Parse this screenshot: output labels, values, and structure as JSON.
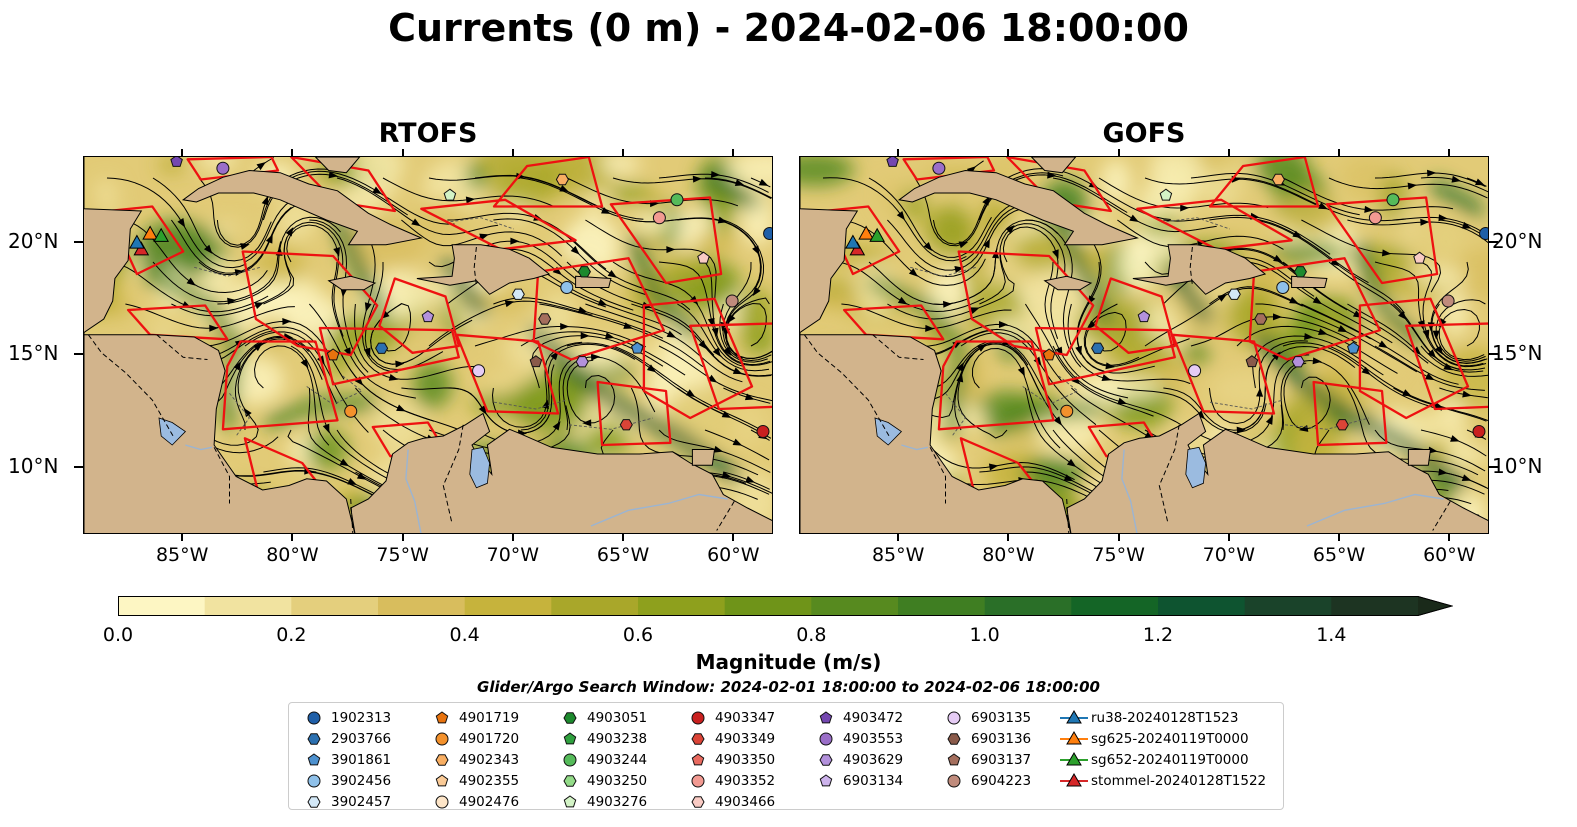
{
  "title": "Currents (0 m) - 2024-02-06 18:00:00",
  "panels": [
    {
      "title": "RTOFS"
    },
    {
      "title": "GOFS"
    }
  ],
  "axes": {
    "lon_ticks": [
      "85°W",
      "80°W",
      "75°W",
      "70°W",
      "65°W",
      "60°W"
    ],
    "lon_values": [
      -85,
      -80,
      -75,
      -70,
      -65,
      -60
    ],
    "lat_ticks": [
      "20°N",
      "15°N",
      "10°N"
    ],
    "lat_values": [
      20,
      15,
      10
    ],
    "lon_range": [
      -89.5,
      -58.2
    ],
    "lat_range": [
      7.0,
      23.8
    ]
  },
  "colorbar": {
    "label": "Magnitude (m/s)",
    "ticks": [
      "0.0",
      "0.2",
      "0.4",
      "0.6",
      "0.8",
      "1.0",
      "1.2",
      "1.4"
    ],
    "tick_values": [
      0.0,
      0.2,
      0.4,
      0.6,
      0.8,
      1.0,
      1.2,
      1.4
    ],
    "min": 0.0,
    "max": 1.5,
    "step": 0.1,
    "extend": "max",
    "colors": [
      "#fdf6c3",
      "#f1e3a0",
      "#e4cf7d",
      "#d8bd5d",
      "#c6b33c",
      "#a9a72a",
      "#8ea01d",
      "#6f9419",
      "#578a1f",
      "#3f7e22",
      "#2a6f28",
      "#146526",
      "#0e5430",
      "#1a432a",
      "#1d3422",
      "#1a2a1a"
    ]
  },
  "legend": {
    "title": "Glider/Argo Search Window: 2024-02-01 18:00:00 to 2024-02-06 18:00:00",
    "columns": [
      [
        {
          "label": "1902313",
          "marker": "circle",
          "color": "#1f5fa8"
        },
        {
          "label": "2903766",
          "marker": "hexagon",
          "color": "#2b70b0"
        },
        {
          "label": "3901861",
          "marker": "pentagon",
          "color": "#4d91cf"
        },
        {
          "label": "3902456",
          "marker": "circle",
          "color": "#8fc1ea"
        },
        {
          "label": "3902457",
          "marker": "hexagon",
          "color": "#d3e8f7"
        }
      ],
      [
        {
          "label": "4901719",
          "marker": "pentagon",
          "color": "#e8730e"
        },
        {
          "label": "4901720",
          "marker": "circle",
          "color": "#f3912c"
        },
        {
          "label": "4902343",
          "marker": "hexagon",
          "color": "#f8ae62"
        },
        {
          "label": "4902355",
          "marker": "pentagon",
          "color": "#fbcb97"
        },
        {
          "label": "4902476",
          "marker": "circle",
          "color": "#fde5c8"
        }
      ],
      [
        {
          "label": "4903051",
          "marker": "hexagon",
          "color": "#1d8a2e"
        },
        {
          "label": "4903238",
          "marker": "pentagon",
          "color": "#2fa03e"
        },
        {
          "label": "4903244",
          "marker": "circle",
          "color": "#55bb5a"
        },
        {
          "label": "4903250",
          "marker": "hexagon",
          "color": "#93db88"
        },
        {
          "label": "4903276",
          "marker": "pentagon",
          "color": "#d3f3c6"
        }
      ],
      [
        {
          "label": "4903347",
          "marker": "circle",
          "color": "#c9201f"
        },
        {
          "label": "4903349",
          "marker": "hexagon",
          "color": "#db4437"
        },
        {
          "label": "4903350",
          "marker": "pentagon",
          "color": "#e96a5f"
        },
        {
          "label": "4903352",
          "marker": "circle",
          "color": "#f29a92"
        },
        {
          "label": "4903466",
          "marker": "hexagon",
          "color": "#f9cbc4"
        }
      ],
      [
        {
          "label": "4903472",
          "marker": "pentagon",
          "color": "#7447b0"
        },
        {
          "label": "4903553",
          "marker": "circle",
          "color": "#9a6ec8"
        },
        {
          "label": "4903629",
          "marker": "hexagon",
          "color": "#b391dc"
        },
        {
          "label": "6903134",
          "marker": "pentagon",
          "color": "#cdb3ec"
        }
      ],
      [
        {
          "label": "6903135",
          "marker": "circle",
          "color": "#e6ccf5"
        },
        {
          "label": "6903136",
          "marker": "hexagon",
          "color": "#8a5a4a"
        },
        {
          "label": "6903137",
          "marker": "pentagon",
          "color": "#a46e5d"
        },
        {
          "label": "6904223",
          "marker": "circle",
          "color": "#c08b7c"
        }
      ],
      [
        {
          "label": "ru38-20240128T1523",
          "marker": "triangle-line",
          "color": "#1f77b4"
        },
        {
          "label": "sg625-20240119T0000",
          "marker": "triangle-line",
          "color": "#ff7f0e"
        },
        {
          "label": "sg652-20240119T0000",
          "marker": "triangle-line",
          "color": "#2ca02c"
        },
        {
          "label": "stommel-20240128T1522",
          "marker": "triangle-line",
          "color": "#d62728"
        }
      ]
    ]
  },
  "floats": [
    {
      "lon": -85.3,
      "lat": 23.6,
      "marker": "pentagon",
      "color": "#7447b0"
    },
    {
      "lon": -83.2,
      "lat": 23.3,
      "marker": "circle",
      "color": "#9a6ec8"
    },
    {
      "lon": -72.9,
      "lat": 22.1,
      "marker": "pentagon",
      "color": "#d3f3c6"
    },
    {
      "lon": -67.8,
      "lat": 22.8,
      "marker": "hexagon",
      "color": "#f8ae62"
    },
    {
      "lon": -62.6,
      "lat": 21.9,
      "marker": "circle",
      "color": "#55bb5a"
    },
    {
      "lon": -63.4,
      "lat": 21.1,
      "marker": "circle",
      "color": "#f29a92"
    },
    {
      "lon": -58.4,
      "lat": 20.4,
      "marker": "circle",
      "color": "#1f5fa8"
    },
    {
      "lon": -61.4,
      "lat": 19.3,
      "marker": "pentagon",
      "color": "#f9cbc4"
    },
    {
      "lon": -66.8,
      "lat": 18.7,
      "marker": "hexagon",
      "color": "#1d8a2e"
    },
    {
      "lon": -67.6,
      "lat": 18.0,
      "marker": "circle",
      "color": "#8fc1ea"
    },
    {
      "lon": -69.8,
      "lat": 17.7,
      "marker": "hexagon",
      "color": "#d3e8f7"
    },
    {
      "lon": -60.1,
      "lat": 17.4,
      "marker": "circle",
      "color": "#c08b7c"
    },
    {
      "lon": -73.9,
      "lat": 16.7,
      "marker": "pentagon",
      "color": "#b391dc"
    },
    {
      "lon": -68.6,
      "lat": 16.6,
      "marker": "hexagon",
      "color": "#a46e5d"
    },
    {
      "lon": -76.0,
      "lat": 15.3,
      "marker": "hexagon",
      "color": "#2b70b0"
    },
    {
      "lon": -78.2,
      "lat": 15.0,
      "marker": "pentagon",
      "color": "#e8730e"
    },
    {
      "lon": -64.4,
      "lat": 15.3,
      "marker": "pentagon",
      "color": "#4d91cf"
    },
    {
      "lon": -66.9,
      "lat": 14.7,
      "marker": "hexagon",
      "color": "#b391dc"
    },
    {
      "lon": -69.0,
      "lat": 14.7,
      "marker": "pentagon",
      "color": "#8a5a4a"
    },
    {
      "lon": -71.6,
      "lat": 14.3,
      "marker": "circle",
      "color": "#e6ccf5"
    },
    {
      "lon": -77.4,
      "lat": 12.5,
      "marker": "circle",
      "color": "#f3912c"
    },
    {
      "lon": -64.9,
      "lat": 11.9,
      "marker": "hexagon",
      "color": "#db4437"
    },
    {
      "lon": -58.7,
      "lat": 11.6,
      "marker": "circle",
      "color": "#c9201f"
    }
  ],
  "gliders": [
    {
      "lon": -86.5,
      "lat": 20.4,
      "color": "#ff7f0e"
    },
    {
      "lon": -86.0,
      "lat": 20.3,
      "color": "#2ca02c"
    },
    {
      "lon": -86.9,
      "lat": 19.7,
      "color": "#d62728"
    },
    {
      "lon": -87.1,
      "lat": 20.0,
      "color": "#1f77b4"
    }
  ]
}
